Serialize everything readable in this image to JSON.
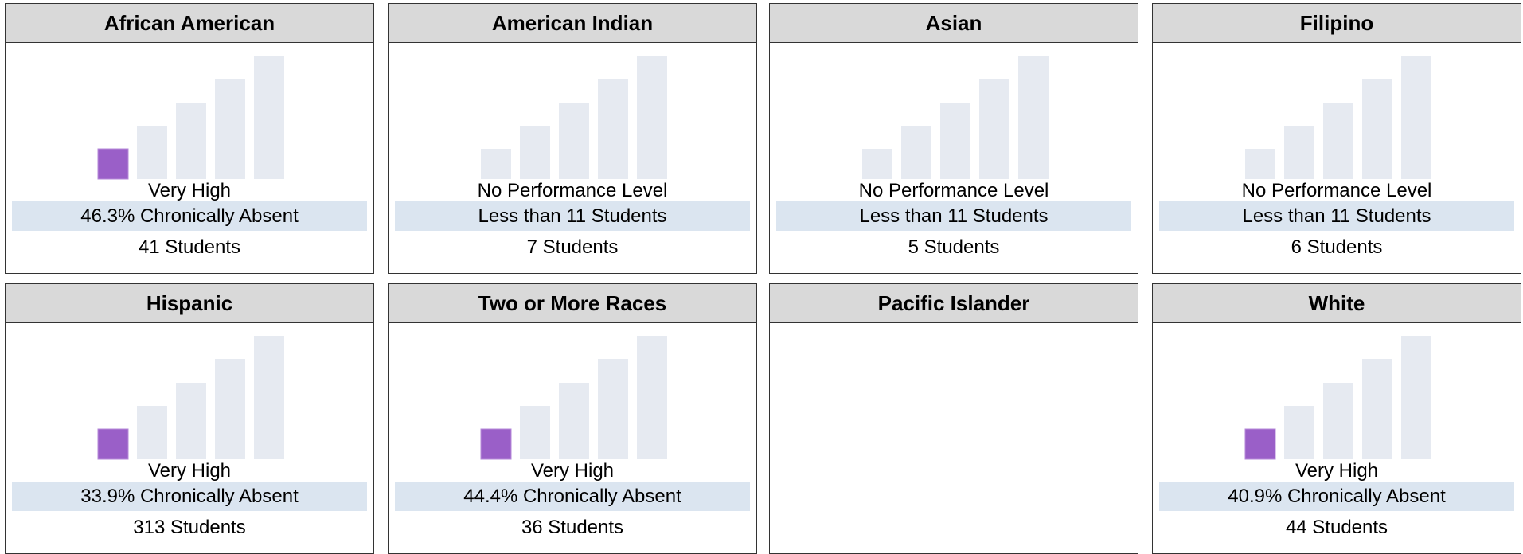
{
  "groups": [
    {
      "name": "African American",
      "status": "Very High",
      "rate": "46.3% Chronically Absent",
      "students": "41 Students"
    },
    {
      "name": "American Indian",
      "status": "No Performance Level",
      "rate": "Less than 11 Students",
      "students": "7 Students"
    },
    {
      "name": "Asian",
      "status": "No Performance Level",
      "rate": "Less than 11 Students",
      "students": "5 Students"
    },
    {
      "name": "Filipino",
      "status": "No Performance Level",
      "rate": "Less than 11 Students",
      "students": "6 Students"
    },
    {
      "name": "Hispanic",
      "status": "Very High",
      "rate": "33.9% Chronically Absent",
      "students": "313 Students"
    },
    {
      "name": "Two or More Races",
      "status": "Very High",
      "rate": "44.4% Chronically Absent",
      "students": "36 Students"
    },
    {
      "name": "Pacific Islander"
    },
    {
      "name": "White",
      "status": "Very High",
      "rate": "40.9% Chronically Absent",
      "students": "44 Students"
    }
  ]
}
